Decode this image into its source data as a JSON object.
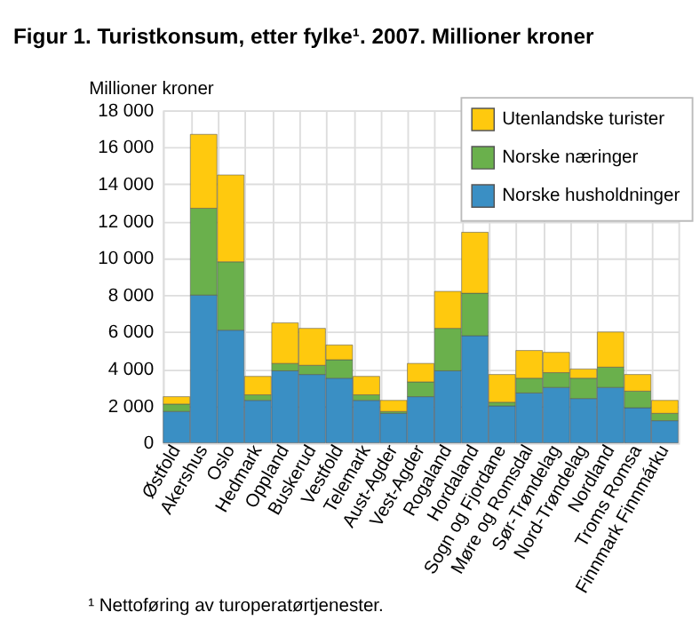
{
  "chart_data": {
    "type": "bar",
    "title": "Figur 1. Turistkonsum, etter fylke¹. 2007. Millioner kroner",
    "ylabel": "Millioner kroner",
    "categories": [
      "Østfold",
      "Akershus",
      "Oslo",
      "Hedmark",
      "Oppland",
      "Buskerud",
      "Vestfold",
      "Telemark",
      "Aust-Agder",
      "Vest-Agder",
      "Rogaland",
      "Hordaland",
      "Sogn og Fjordane",
      "Møre og Romsdal",
      "Sør-Trøndelag",
      "Nord-Trøndelag",
      "Nordland",
      "Troms Romsa",
      "Finnmark Finnmárku"
    ],
    "stacked": true,
    "series": [
      {
        "name": "Norske husholdninger",
        "color": "#3a8fc4",
        "values": [
          1700,
          8000,
          6100,
          2300,
          3900,
          3700,
          3500,
          2300,
          1600,
          2500,
          3900,
          5800,
          2000,
          2700,
          3000,
          2400,
          3000,
          1900,
          1200
        ]
      },
      {
        "name": "Norske næringer",
        "color": "#6ab04c",
        "values": [
          400,
          4700,
          3700,
          300,
          400,
          500,
          1000,
          300,
          100,
          800,
          2300,
          2300,
          200,
          800,
          800,
          1100,
          1100,
          900,
          400
        ]
      },
      {
        "name": "Utenlandske turister",
        "color": "#ffc90e",
        "values": [
          400,
          4000,
          4700,
          1000,
          2200,
          2000,
          800,
          1000,
          600,
          1000,
          2000,
          3300,
          1500,
          1500,
          1100,
          500,
          1900,
          900,
          700
        ]
      }
    ],
    "ylim": [
      0,
      18000
    ],
    "yticks": [
      {
        "value": 0,
        "label": "0"
      },
      {
        "value": 2000,
        "label": "2 000"
      },
      {
        "value": 4000,
        "label": "4 000"
      },
      {
        "value": 6000,
        "label": "6 000"
      },
      {
        "value": 8000,
        "label": "8 000"
      },
      {
        "value": 10000,
        "label": "10 000"
      },
      {
        "value": 12000,
        "label": "12 000"
      },
      {
        "value": 14000,
        "label": "14 000"
      },
      {
        "value": 16000,
        "label": "16 000"
      },
      {
        "value": 18000,
        "label": "18 000"
      }
    ],
    "grid": true,
    "legend": "top right",
    "annotations": [
      "¹ Nettoføring av turoperatørtjenester."
    ]
  }
}
